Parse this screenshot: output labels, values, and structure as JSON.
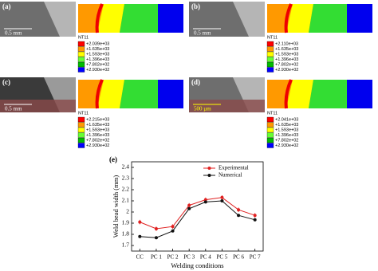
{
  "panels": [
    {
      "label": "(a)",
      "scale": "0.5 mm",
      "legend_title": "NT11",
      "legend": [
        "+2.039e+03",
        "+1.635e+03",
        "+1.593e+03",
        "+1.396e+03",
        "+7.802e+02",
        "+2.930e+02"
      ]
    },
    {
      "label": "(b)",
      "scale": "0.5 mm",
      "legend_title": "NT11",
      "legend": [
        "+2.110e+03",
        "+1.635e+03",
        "+1.593e+03",
        "+1.396e+03",
        "+7.802e+02",
        "+2.930e+02"
      ]
    },
    {
      "label": "(c)",
      "scale": "0.5 mm",
      "legend_title": "NT11",
      "legend": [
        "+2.215e+03",
        "+1.635e+03",
        "+1.593e+03",
        "+1.396e+03",
        "+7.802e+02",
        "+2.930e+02"
      ]
    },
    {
      "label": "(d)",
      "scale": "500 µm",
      "legend_title": "NT11",
      "legend": [
        "+2.041e+03",
        "+1.635e+03",
        "+1.593e+03",
        "+1.396e+03",
        "+7.802e+02",
        "+2.930e+02"
      ]
    }
  ],
  "chart_data": {
    "type": "line",
    "label": "(e)",
    "x_label": "Welding conditions",
    "y_label": "Weld bead width (mm)",
    "categories": [
      "CC",
      "PC 1",
      "PC 2",
      "PC 3",
      "PC 4",
      "PC 5",
      "PC 6",
      "PC 7"
    ],
    "series": [
      {
        "name": "Experimental",
        "color": "#e02020",
        "values": [
          1.91,
          1.85,
          1.87,
          2.06,
          2.11,
          2.13,
          2.02,
          1.97
        ],
        "errors": [
          0.02,
          0.02,
          0.02,
          0.02,
          0.02,
          0.02,
          0.02,
          0.02
        ]
      },
      {
        "name": "Numerical",
        "color": "#111111",
        "values": [
          1.78,
          1.77,
          1.83,
          2.03,
          2.09,
          2.1,
          1.97,
          1.93
        ]
      }
    ],
    "ylim": [
      1.65,
      2.45
    ],
    "yticks": [
      1.7,
      1.8,
      1.9,
      2.0,
      2.1,
      2.2,
      2.3,
      2.4
    ]
  }
}
